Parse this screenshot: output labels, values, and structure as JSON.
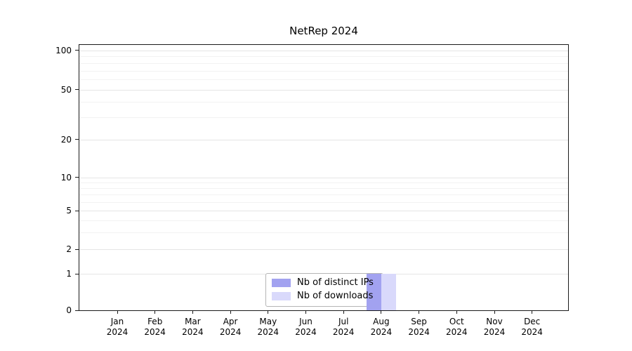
{
  "title": "NetRep 2024",
  "chart_data": {
    "type": "bar",
    "title": "NetRep 2024",
    "categories": [
      "Jan 2024",
      "Feb 2024",
      "Mar 2024",
      "Apr 2024",
      "May 2024",
      "Jun 2024",
      "Jul 2024",
      "Aug 2024",
      "Sep 2024",
      "Oct 2024",
      "Nov 2024",
      "Dec 2024"
    ],
    "series": [
      {
        "name": "Nb of distinct IPs",
        "color": "#a2a2f0",
        "values": [
          0,
          0,
          0,
          0,
          0,
          0,
          0,
          1,
          0,
          0,
          0,
          0
        ]
      },
      {
        "name": "Nb of downloads",
        "color": "#d9d9fb",
        "values": [
          0,
          0,
          0,
          0,
          0,
          0,
          0,
          1,
          0,
          0,
          0,
          0
        ]
      }
    ],
    "yticks": [
      0,
      1,
      2,
      5,
      10,
      20,
      50,
      100
    ],
    "yminor_gridlines": [
      3,
      4,
      6,
      7,
      8,
      9,
      30,
      40,
      60,
      70,
      80,
      90
    ],
    "yscale": "symlog-like",
    "ylim": [
      0,
      100
    ],
    "grid": "horizontal",
    "legend_position": "lower center",
    "plot_background": "#ffffff",
    "spine_color": "#1a1a1a"
  }
}
